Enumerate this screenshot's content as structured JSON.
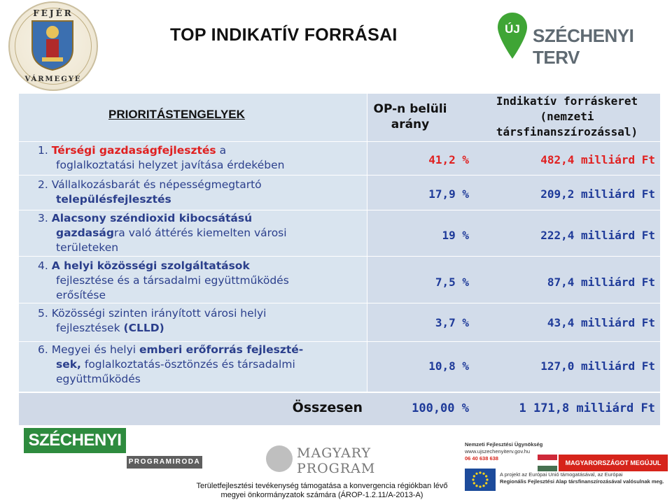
{
  "header": {
    "title": "TOP INDIKATÍV FORRÁSAI",
    "seal_text_top": "FEJÉR",
    "seal_text_bottom": "VÁRMEGYE",
    "szechenyi_terv_logo": "ÚJ SZÉCHENYI TERV"
  },
  "table": {
    "col_priorities": "PRIORITÁSTENGELYEK",
    "col_op_share_l1": "OP-n belüli",
    "col_op_share_l2": "arány",
    "col_budget_l1": "Indikatív forráskeret",
    "col_budget_l2": "(nemzeti",
    "col_budget_l3": "társfinanszírozással)",
    "rows": [
      {
        "pct": "41,2 %",
        "amount": "482,4 milliárd Ft"
      },
      {
        "pct": "17,9 %",
        "amount": "209,2 milliárd Ft"
      },
      {
        "pct": "19 %",
        "amount": "222,4 milliárd Ft"
      },
      {
        "pct": "7,5 %",
        "amount": "87,4 milliárd Ft"
      },
      {
        "pct": "3,7 %",
        "amount": "43,4 milliárd Ft"
      },
      {
        "pct": "10,8 %",
        "amount": "127,0 milliárd Ft"
      }
    ],
    "p1": {
      "n": "1. ",
      "b": "Térségi gazdaságfejlesztés",
      "t1": " a",
      "t2": "foglalkoztatási helyzet javítása érdekében"
    },
    "p2": {
      "n": "2. ",
      "t1": "Vállalkozásbarát és népességmegtartó",
      "b": "településfejlesztés"
    },
    "p3": {
      "n": "3. ",
      "b1": "Alacsony széndioxid kibocsátású",
      "b2": "gazdaság",
      "t1": "ra való áttérés kiemelten városi",
      "t2": "területeken"
    },
    "p4": {
      "n": "4. ",
      "b": "A helyi közösségi szolgáltatások",
      "t1": "fejlesztése és a társadalmi együttműködés",
      "t2": "erősítése"
    },
    "p5": {
      "n": "5. ",
      "t1": "Közösségi szinten irányított városi helyi",
      "t2": "fejlesztések ",
      "b": "(CLLD)"
    },
    "p6": {
      "n": "6. ",
      "t1": "Megyei és helyi ",
      "b1": "emberi erőforrás fejleszté-",
      "b2": "sek,",
      "t2": " foglalkoztatás-ösztönzés és társadalmi",
      "t3": "együttműködés"
    },
    "total_label": "Összesen",
    "total_pct": "100,00 %",
    "total_amount": "1 171,8 milliárd Ft"
  },
  "footer": {
    "szechenyi_logo": "SZÉCHENYI",
    "programiroda": "PROGRAMIRODA",
    "magyary_l1": "MAGYARY",
    "magyary_l2": "PROGRAM",
    "nfu_name": "Nemzeti Fejlesztési Ügynökség",
    "nfu_url": "www.ujszechenyiterv.gov.hu",
    "nfu_phone": "06 40 638 638",
    "banner": "MAGYARORSZÁGOT MEGÚJUL",
    "eu_text_1": "A projekt az Európai Unió támogatásával, az Európai",
    "eu_text_2": "Regionális Fejlesztési Alap társfinanszírozásával valósulnak meg.",
    "caption_l1": "Területfejlesztési tevékenység támogatása a konvergencia régiókban lévő",
    "caption_l2": "megyei önkormányzatok számára (ÁROP-1.2.11/A-2013-A)"
  }
}
